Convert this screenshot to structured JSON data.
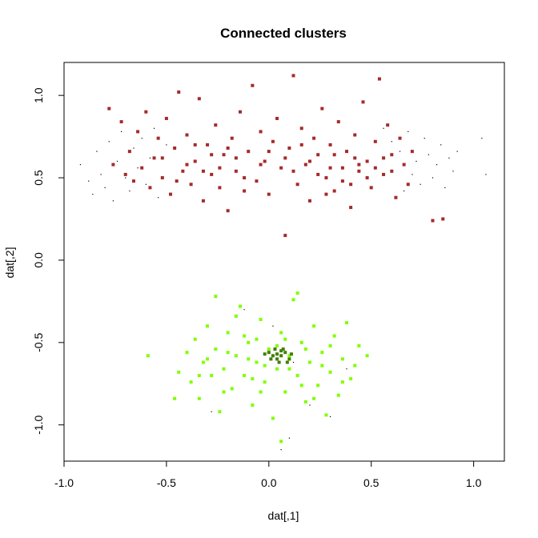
{
  "chart_data": {
    "type": "scatter",
    "title": "Connected clusters",
    "xlabel": "dat[,1]",
    "ylabel": "dat[,2]",
    "xlim": [
      -1.0,
      1.15
    ],
    "ylim": [
      -1.22,
      1.2
    ],
    "xticks": [
      -1.0,
      -0.5,
      0.0,
      0.5,
      1.0
    ],
    "xtick_labels": [
      "-1.0",
      "-0.5",
      "0.0",
      "0.5",
      "1.0"
    ],
    "yticks": [
      -1.0,
      -0.5,
      0.0,
      0.5,
      1.0
    ],
    "ytick_labels": [
      "-1.0",
      "-0.5",
      "0.0",
      "0.5",
      "1.0"
    ],
    "grid": false,
    "legend": "none",
    "series": [
      {
        "color": "#000000",
        "marker": "dot",
        "points": [
          [
            -0.92,
            0.58
          ],
          [
            -0.88,
            0.48
          ],
          [
            -0.86,
            0.4
          ],
          [
            -0.84,
            0.66
          ],
          [
            -0.82,
            0.52
          ],
          [
            -0.8,
            0.44
          ],
          [
            -0.78,
            0.72
          ],
          [
            -0.76,
            0.36
          ],
          [
            -0.74,
            0.6
          ],
          [
            -0.72,
            0.78
          ],
          [
            -0.7,
            0.5
          ],
          [
            -0.68,
            0.42
          ],
          [
            -0.66,
            0.68
          ],
          [
            -0.64,
            0.56
          ],
          [
            -0.62,
            0.74
          ],
          [
            -0.6,
            0.46
          ],
          [
            -0.58,
            0.62
          ],
          [
            -0.56,
            0.8
          ],
          [
            -0.54,
            0.38
          ],
          [
            -0.5,
            0.7
          ],
          [
            0.56,
            0.8
          ],
          [
            0.6,
            0.72
          ],
          [
            0.64,
            0.66
          ],
          [
            0.66,
            0.42
          ],
          [
            0.68,
            0.78
          ],
          [
            0.7,
            0.52
          ],
          [
            0.72,
            0.6
          ],
          [
            0.74,
            0.46
          ],
          [
            0.76,
            0.74
          ],
          [
            0.78,
            0.64
          ],
          [
            0.8,
            0.5
          ],
          [
            0.82,
            0.58
          ],
          [
            0.84,
            0.7
          ],
          [
            0.86,
            0.44
          ],
          [
            0.88,
            0.62
          ],
          [
            0.9,
            0.54
          ],
          [
            0.92,
            0.66
          ],
          [
            1.04,
            0.74
          ],
          [
            1.06,
            0.52
          ],
          [
            0.02,
            -0.4
          ],
          [
            0.1,
            -1.08
          ],
          [
            0.06,
            -1.15
          ],
          [
            0.2,
            -0.88
          ],
          [
            -0.12,
            -0.3
          ],
          [
            0.3,
            -0.95
          ],
          [
            -0.28,
            -0.92
          ],
          [
            0.38,
            -0.66
          ],
          [
            0.0,
            -0.56
          ],
          [
            0.12,
            -0.62
          ]
        ]
      },
      {
        "color": "#a52a2a",
        "marker": "square",
        "points": [
          [
            -0.78,
            0.92
          ],
          [
            -0.76,
            0.58
          ],
          [
            -0.72,
            0.84
          ],
          [
            -0.7,
            0.52
          ],
          [
            -0.68,
            0.66
          ],
          [
            -0.66,
            0.48
          ],
          [
            -0.64,
            0.78
          ],
          [
            -0.62,
            0.56
          ],
          [
            -0.6,
            0.9
          ],
          [
            -0.58,
            0.44
          ],
          [
            -0.56,
            0.62
          ],
          [
            -0.54,
            0.74
          ],
          [
            -0.52,
            0.5
          ],
          [
            -0.5,
            0.86
          ],
          [
            -0.48,
            0.4
          ],
          [
            -0.46,
            0.68
          ],
          [
            -0.44,
            1.02
          ],
          [
            -0.42,
            0.54
          ],
          [
            -0.4,
            0.76
          ],
          [
            -0.38,
            0.46
          ],
          [
            -0.36,
            0.6
          ],
          [
            -0.34,
            0.98
          ],
          [
            -0.32,
            0.36
          ],
          [
            -0.3,
            0.7
          ],
          [
            -0.28,
            0.52
          ],
          [
            -0.26,
            0.82
          ],
          [
            -0.24,
            0.44
          ],
          [
            -0.22,
            0.64
          ],
          [
            -0.2,
            0.3
          ],
          [
            -0.18,
            0.74
          ],
          [
            -0.16,
            0.54
          ],
          [
            -0.14,
            0.9
          ],
          [
            -0.12,
            0.42
          ],
          [
            -0.1,
            0.66
          ],
          [
            -0.08,
            1.06
          ],
          [
            -0.06,
            0.48
          ],
          [
            -0.04,
            0.78
          ],
          [
            -0.02,
            0.6
          ],
          [
            0.0,
            0.4
          ],
          [
            0.02,
            0.72
          ],
          [
            0.04,
            0.86
          ],
          [
            0.06,
            0.56
          ],
          [
            0.08,
            0.15
          ],
          [
            0.1,
            0.68
          ],
          [
            0.12,
            1.12
          ],
          [
            0.14,
            0.46
          ],
          [
            0.16,
            0.8
          ],
          [
            0.18,
            0.58
          ],
          [
            0.2,
            0.36
          ],
          [
            0.22,
            0.74
          ],
          [
            0.24,
            0.64
          ],
          [
            0.26,
            0.92
          ],
          [
            0.28,
            0.5
          ],
          [
            0.3,
            0.7
          ],
          [
            0.32,
            0.42
          ],
          [
            0.34,
            0.84
          ],
          [
            0.36,
            0.56
          ],
          [
            0.38,
            0.66
          ],
          [
            0.4,
            0.32
          ],
          [
            0.42,
            0.76
          ],
          [
            0.44,
            0.54
          ],
          [
            0.46,
            0.96
          ],
          [
            0.48,
            0.6
          ],
          [
            0.5,
            0.44
          ],
          [
            0.52,
            0.72
          ],
          [
            0.54,
            1.1
          ],
          [
            0.56,
            0.52
          ],
          [
            0.58,
            0.82
          ],
          [
            0.6,
            0.64
          ],
          [
            0.62,
            0.38
          ],
          [
            0.64,
            0.74
          ],
          [
            0.66,
            0.58
          ],
          [
            0.68,
            0.46
          ],
          [
            0.7,
            0.66
          ],
          [
            0.8,
            0.24
          ],
          [
            0.85,
            0.25
          ],
          [
            -0.52,
            0.62
          ],
          [
            -0.4,
            0.58
          ],
          [
            -0.28,
            0.64
          ],
          [
            -0.16,
            0.62
          ],
          [
            -0.04,
            0.58
          ],
          [
            0.08,
            0.62
          ],
          [
            0.2,
            0.6
          ],
          [
            0.32,
            0.64
          ],
          [
            0.44,
            0.58
          ],
          [
            0.56,
            0.62
          ],
          [
            0.24,
            0.52
          ],
          [
            0.36,
            0.48
          ],
          [
            0.48,
            0.5
          ],
          [
            0.28,
            0.4
          ],
          [
            0.4,
            0.46
          ],
          [
            0.52,
            0.56
          ],
          [
            -0.36,
            0.7
          ],
          [
            -0.24,
            0.56
          ],
          [
            -0.12,
            0.5
          ],
          [
            0.0,
            0.66
          ],
          [
            0.12,
            0.54
          ],
          [
            -0.45,
            0.48
          ],
          [
            -0.32,
            0.54
          ],
          [
            -0.2,
            0.68
          ],
          [
            0.16,
            0.7
          ],
          [
            0.3,
            0.56
          ],
          [
            0.42,
            0.62
          ],
          [
            0.6,
            0.54
          ]
        ]
      },
      {
        "color": "#7fff00",
        "marker": "square",
        "points": [
          [
            -0.59,
            -0.58
          ],
          [
            -0.46,
            -0.84
          ],
          [
            -0.44,
            -0.68
          ],
          [
            -0.4,
            -0.56
          ],
          [
            -0.38,
            -0.74
          ],
          [
            -0.36,
            -0.48
          ],
          [
            -0.34,
            -0.84
          ],
          [
            -0.32,
            -0.62
          ],
          [
            -0.3,
            -0.4
          ],
          [
            -0.28,
            -0.7
          ],
          [
            -0.26,
            -0.54
          ],
          [
            -0.24,
            -0.92
          ],
          [
            -0.22,
            -0.66
          ],
          [
            -0.2,
            -0.44
          ],
          [
            -0.18,
            -0.78
          ],
          [
            -0.16,
            -0.58
          ],
          [
            -0.14,
            -0.28
          ],
          [
            -0.12,
            -0.7
          ],
          [
            -0.1,
            -0.5
          ],
          [
            -0.08,
            -0.88
          ],
          [
            -0.06,
            -0.62
          ],
          [
            -0.04,
            -0.36
          ],
          [
            -0.02,
            -0.74
          ],
          [
            0.0,
            -0.54
          ],
          [
            0.02,
            -0.96
          ],
          [
            0.04,
            -0.66
          ],
          [
            0.06,
            -0.44
          ],
          [
            0.08,
            -0.8
          ],
          [
            0.1,
            -0.58
          ],
          [
            0.12,
            -0.24
          ],
          [
            0.14,
            -0.7
          ],
          [
            0.16,
            -0.5
          ],
          [
            0.18,
            -0.86
          ],
          [
            0.2,
            -0.62
          ],
          [
            0.22,
            -0.4
          ],
          [
            0.24,
            -0.76
          ],
          [
            0.26,
            -0.56
          ],
          [
            0.28,
            -0.94
          ],
          [
            0.3,
            -0.68
          ],
          [
            0.32,
            -0.46
          ],
          [
            0.34,
            -0.82
          ],
          [
            0.36,
            -0.6
          ],
          [
            0.38,
            -0.38
          ],
          [
            0.4,
            -0.72
          ],
          [
            0.42,
            -0.64
          ],
          [
            0.44,
            -0.52
          ],
          [
            0.48,
            -0.58
          ],
          [
            0.06,
            -1.1
          ],
          [
            0.14,
            -0.2
          ],
          [
            -0.26,
            -0.22
          ],
          [
            -0.16,
            -0.34
          ],
          [
            -0.06,
            -0.48
          ],
          [
            0.04,
            -0.52
          ],
          [
            0.1,
            -0.66
          ],
          [
            -0.1,
            -0.6
          ],
          [
            -0.2,
            -0.56
          ],
          [
            0.18,
            -0.54
          ],
          [
            0.26,
            -0.64
          ],
          [
            -0.3,
            -0.6
          ],
          [
            -0.02,
            -0.64
          ],
          [
            -0.12,
            -0.46
          ],
          [
            0.08,
            -0.48
          ],
          [
            0.16,
            -0.76
          ],
          [
            -0.04,
            -0.8
          ],
          [
            -0.22,
            -0.8
          ],
          [
            0.22,
            -0.84
          ],
          [
            0.3,
            -0.52
          ],
          [
            -0.34,
            -0.7
          ],
          [
            0.36,
            -0.74
          ],
          [
            -0.08,
            -0.72
          ]
        ]
      },
      {
        "color": "#3f7f00",
        "marker": "square",
        "points": [
          [
            0.0,
            -0.56
          ],
          [
            0.02,
            -0.58
          ],
          [
            0.04,
            -0.6
          ],
          [
            0.06,
            -0.58
          ],
          [
            0.08,
            -0.56
          ],
          [
            0.1,
            -0.6
          ],
          [
            0.03,
            -0.54
          ],
          [
            0.05,
            -0.62
          ],
          [
            0.07,
            -0.54
          ],
          [
            0.09,
            -0.62
          ],
          [
            0.01,
            -0.6
          ],
          [
            0.11,
            -0.57
          ],
          [
            -0.02,
            -0.57
          ],
          [
            0.06,
            -0.55
          ],
          [
            0.04,
            -0.57
          ]
        ]
      }
    ]
  }
}
